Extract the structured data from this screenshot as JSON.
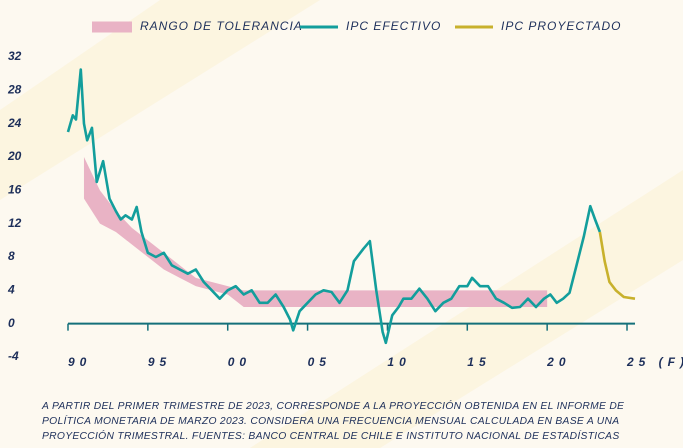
{
  "chart_data": {
    "type": "line",
    "xlim": [
      1990,
      2025.5
    ],
    "ylim": [
      -4,
      32
    ],
    "xticks": [
      {
        "value": 1990,
        "label": "90"
      },
      {
        "value": 1995,
        "label": "95"
      },
      {
        "value": 2000,
        "label": "00"
      },
      {
        "value": 2005,
        "label": "05"
      },
      {
        "value": 2010,
        "label": "10"
      },
      {
        "value": 2015,
        "label": "15"
      },
      {
        "value": 2020,
        "label": "20"
      },
      {
        "value": 2025,
        "label": "25 (F)"
      }
    ],
    "yticks": [
      -4,
      0,
      4,
      8,
      12,
      16,
      20,
      24,
      28,
      32
    ],
    "legend": "top",
    "band": {
      "name": "RANGO DE TOLERANCIA",
      "color": "#e9b3c5",
      "x": [
        1991,
        1992,
        1993,
        1994,
        1995,
        1996,
        1997,
        1998,
        1999,
        2000,
        2001,
        2020
      ],
      "lower": [
        15,
        12,
        11,
        9.5,
        8,
        6.5,
        5.5,
        4.5,
        4,
        3.5,
        2,
        2
      ],
      "upper": [
        20,
        16,
        13.5,
        11.5,
        10,
        8.5,
        7,
        5.5,
        5,
        4.5,
        4,
        4
      ]
    },
    "series": [
      {
        "name": "IPC EFECTIVO",
        "color": "#139e9c",
        "x": [
          1990.0,
          1990.3,
          1990.5,
          1990.8,
          1991.0,
          1991.2,
          1991.5,
          1991.8,
          1992.2,
          1992.6,
          1993.0,
          1993.3,
          1993.6,
          1994.0,
          1994.3,
          1994.6,
          1995.0,
          1995.5,
          1996.0,
          1996.5,
          1997.0,
          1997.5,
          1998.0,
          1998.5,
          1999.0,
          1999.5,
          2000.0,
          2000.5,
          2001.0,
          2001.5,
          2002.0,
          2002.5,
          2003.0,
          2003.5,
          2003.9,
          2004.1,
          2004.5,
          2005.0,
          2005.5,
          2006.0,
          2006.5,
          2007.0,
          2007.5,
          2007.9,
          2008.5,
          2008.9,
          2009.3,
          2009.7,
          2009.9,
          2010.3,
          2010.7,
          2011.0,
          2011.5,
          2012.0,
          2012.5,
          2013.0,
          2013.5,
          2014.0,
          2014.5,
          2015.0,
          2015.3,
          2015.8,
          2016.3,
          2016.8,
          2017.3,
          2017.8,
          2018.3,
          2018.8,
          2019.3,
          2019.8,
          2020.2,
          2020.6,
          2021.0,
          2021.4,
          2021.8,
          2022.3,
          2022.7,
          2023.0,
          2023.3
        ],
        "values": [
          23,
          25,
          24.5,
          30.5,
          24,
          22,
          23.5,
          17,
          19.5,
          15,
          13.5,
          12.5,
          13,
          12.5,
          14,
          11,
          8.5,
          8,
          8.5,
          7,
          6.5,
          6,
          6.5,
          5,
          4,
          3,
          4,
          4.5,
          3.5,
          4,
          2.5,
          2.5,
          3.5,
          2,
          0.5,
          -0.8,
          1.5,
          2.5,
          3.5,
          4,
          3.8,
          2.5,
          4,
          7.5,
          9,
          9.9,
          4,
          -1,
          -2.3,
          1,
          2,
          3,
          3,
          4.2,
          3,
          1.5,
          2.5,
          3,
          4.5,
          4.5,
          5.5,
          4.5,
          4.5,
          3,
          2.5,
          1.9,
          2,
          3,
          2,
          3,
          3.5,
          2.5,
          3,
          3.7,
          6.7,
          10.5,
          14.1,
          12.5,
          11
        ]
      },
      {
        "name": "IPC PROYECTADO",
        "color": "#c8b12c",
        "x": [
          2023.3,
          2023.6,
          2023.9,
          2024.3,
          2024.8,
          2025.5
        ],
        "values": [
          11,
          7.5,
          5,
          4,
          3.2,
          3.0
        ]
      }
    ],
    "note": "A PARTIR DEL PRIMER TRIMESTRE DE 2023, CORRESPONDE A LA PROYECCIÓN OBTENIDA EN EL INFORME DE POLÍTICA MONETARIA DE MARZO 2023. CONSIDERA UNA FRECUENCIA MENSUAL CALCULADA EN BASE A UNA PROYECCIÓN TRIMESTRAL. FUENTES: BANCO CENTRAL DE CHILE E INSTITUTO NACIONAL DE ESTADÍSTICAS"
  }
}
